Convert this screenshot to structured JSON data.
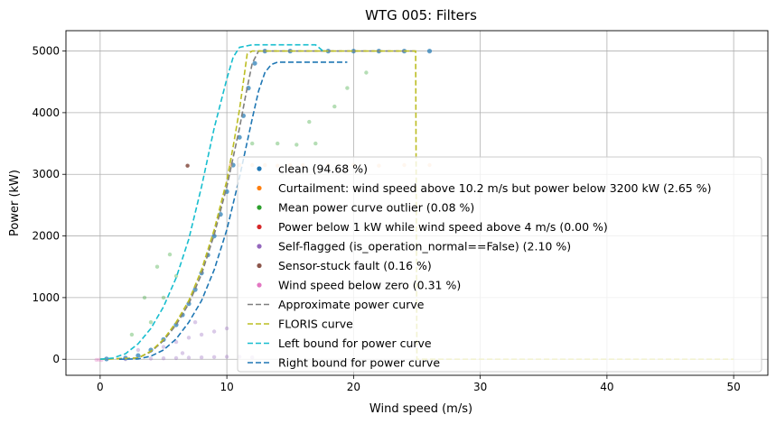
{
  "chart_data": {
    "type": "scatter",
    "title": "WTG 005: Filters",
    "xlabel": "Wind speed (m/s)",
    "ylabel": "Power (kW)",
    "xlim": [
      -2.7,
      52.7
    ],
    "ylim": [
      -260,
      5330
    ],
    "xticks": [
      0,
      10,
      20,
      30,
      40,
      50
    ],
    "yticks": [
      0,
      1000,
      2000,
      3000,
      4000,
      5000
    ],
    "grid": true,
    "legend_position": "lower-right",
    "colors": {
      "clean": "#1f77b4",
      "curtailment": "#ff7f0e",
      "outlier": "#2ca02c",
      "lowpower": "#d62728",
      "selfflag": "#9467bd",
      "stuck": "#8c564b",
      "negwind": "#e377c2",
      "approx": "#7f7f7f",
      "floris": "#bcbd22",
      "left": "#17becf",
      "right": "#1f77b4"
    },
    "series": [
      {
        "name": "clean (94.68 %)",
        "kind": "points",
        "color_key": "clean",
        "points": [
          [
            0.5,
            5
          ],
          [
            2,
            20
          ],
          [
            3,
            60
          ],
          [
            4,
            150
          ],
          [
            5,
            320
          ],
          [
            6,
            560
          ],
          [
            6.5,
            720
          ],
          [
            7,
            900
          ],
          [
            7.5,
            1130
          ],
          [
            8,
            1400
          ],
          [
            8.5,
            1690
          ],
          [
            9,
            2000
          ],
          [
            9.5,
            2350
          ],
          [
            10,
            2720
          ],
          [
            10.5,
            3150
          ],
          [
            11,
            3600
          ],
          [
            11.3,
            3950
          ],
          [
            11.7,
            4400
          ],
          [
            12.2,
            4800
          ],
          [
            13,
            5000
          ],
          [
            15,
            5000
          ],
          [
            18,
            5000
          ],
          [
            20,
            5000
          ],
          [
            22,
            5000
          ],
          [
            24,
            5000
          ],
          [
            26,
            5000
          ]
        ]
      },
      {
        "name": "Curtailment: wind speed above 10.2 m/s but power below 3200 kW (2.65 %)",
        "kind": "points",
        "color_key": "curtailment",
        "points": [
          [
            10.3,
            3150
          ],
          [
            11,
            3150
          ],
          [
            12,
            3150
          ],
          [
            13,
            3150
          ],
          [
            14,
            3140
          ],
          [
            15,
            3150
          ],
          [
            16,
            3150
          ],
          [
            18,
            3150
          ],
          [
            20,
            3150
          ],
          [
            22,
            3140
          ],
          [
            24,
            3150
          ],
          [
            26,
            3150
          ]
        ]
      },
      {
        "name": "Mean power curve outlier (0.08 %)",
        "kind": "points",
        "color_key": "outlier",
        "points": [
          [
            2.5,
            400
          ],
          [
            3.5,
            1000
          ],
          [
            4,
            600
          ],
          [
            4.5,
            1500
          ],
          [
            5,
            1000
          ],
          [
            5.5,
            1700
          ],
          [
            6,
            1350
          ],
          [
            12,
            3500
          ],
          [
            14,
            3500
          ],
          [
            15.5,
            3480
          ],
          [
            17,
            3500
          ],
          [
            16.5,
            3850
          ],
          [
            18.5,
            4100
          ],
          [
            19.5,
            4400
          ],
          [
            21,
            4650
          ]
        ]
      },
      {
        "name": "Power below 1 kW while wind speed above 4 m/s (0.00 %)",
        "kind": "points",
        "color_key": "lowpower",
        "points": []
      },
      {
        "name": "Self-flagged (is_operation_normal==False) (2.10 %)",
        "kind": "points",
        "color_key": "selfflag",
        "points": [
          [
            2,
            0
          ],
          [
            4,
            10
          ],
          [
            5,
            15
          ],
          [
            6,
            20
          ],
          [
            7,
            25
          ],
          [
            8,
            30
          ],
          [
            9,
            35
          ],
          [
            10,
            40
          ],
          [
            11,
            40
          ],
          [
            12,
            30
          ],
          [
            5,
            200
          ],
          [
            6,
            280
          ],
          [
            7,
            350
          ],
          [
            8,
            400
          ],
          [
            9,
            450
          ],
          [
            10,
            500
          ],
          [
            3,
            150
          ],
          [
            7.5,
            600
          ],
          [
            6.5,
            100
          ]
        ]
      },
      {
        "name": "Sensor-stuck fault (0.16 %)",
        "kind": "points",
        "color_key": "stuck",
        "points": [
          [
            6.9,
            3140
          ]
        ]
      },
      {
        "name": "Wind speed below zero (0.31 %)",
        "kind": "points",
        "color_key": "negwind",
        "points": [
          [
            -0.3,
            -10
          ],
          [
            -0.1,
            -8
          ],
          [
            0.1,
            -12
          ]
        ]
      },
      {
        "name": "Approximate power curve",
        "kind": "line",
        "color_key": "approx",
        "points": [
          [
            0,
            0
          ],
          [
            3,
            20
          ],
          [
            4,
            120
          ],
          [
            5,
            300
          ],
          [
            6,
            560
          ],
          [
            7,
            900
          ],
          [
            8,
            1380
          ],
          [
            9,
            2020
          ],
          [
            10,
            2800
          ],
          [
            11,
            3750
          ],
          [
            11.5,
            4300
          ],
          [
            12,
            4800
          ],
          [
            12.5,
            5000
          ],
          [
            25,
            5000
          ]
        ]
      },
      {
        "name": "FLORIS curve",
        "kind": "line",
        "color_key": "floris",
        "points": [
          [
            0,
            0
          ],
          [
            3,
            20
          ],
          [
            4,
            130
          ],
          [
            5,
            320
          ],
          [
            6,
            600
          ],
          [
            7,
            950
          ],
          [
            8,
            1450
          ],
          [
            9,
            2100
          ],
          [
            10,
            2900
          ],
          [
            10.5,
            3450
          ],
          [
            11,
            4050
          ],
          [
            11.3,
            4500
          ],
          [
            11.6,
            4950
          ],
          [
            12,
            5000
          ],
          [
            24.9,
            5000
          ],
          [
            25,
            0
          ],
          [
            50,
            0
          ]
        ]
      },
      {
        "name": "Left bound for power curve",
        "kind": "line",
        "color_key": "left",
        "points": [
          [
            0,
            0
          ],
          [
            1,
            20
          ],
          [
            2,
            90
          ],
          [
            3,
            250
          ],
          [
            4,
            500
          ],
          [
            5,
            850
          ],
          [
            6,
            1320
          ],
          [
            7,
            1950
          ],
          [
            8,
            2800
          ],
          [
            9,
            3750
          ],
          [
            10,
            4550
          ],
          [
            10.5,
            4900
          ],
          [
            11,
            5060
          ],
          [
            12,
            5100
          ],
          [
            17,
            5100
          ],
          [
            17.6,
            5000
          ]
        ]
      },
      {
        "name": "Right bound for power curve",
        "kind": "line",
        "color_key": "right",
        "points": [
          [
            1.5,
            0
          ],
          [
            3,
            5
          ],
          [
            4,
            50
          ],
          [
            5,
            150
          ],
          [
            6,
            330
          ],
          [
            7,
            600
          ],
          [
            8,
            950
          ],
          [
            9,
            1450
          ],
          [
            10,
            2100
          ],
          [
            11,
            2950
          ],
          [
            12,
            3900
          ],
          [
            12.5,
            4350
          ],
          [
            13,
            4650
          ],
          [
            13.5,
            4780
          ],
          [
            14,
            4820
          ],
          [
            19.5,
            4820
          ]
        ]
      }
    ]
  }
}
